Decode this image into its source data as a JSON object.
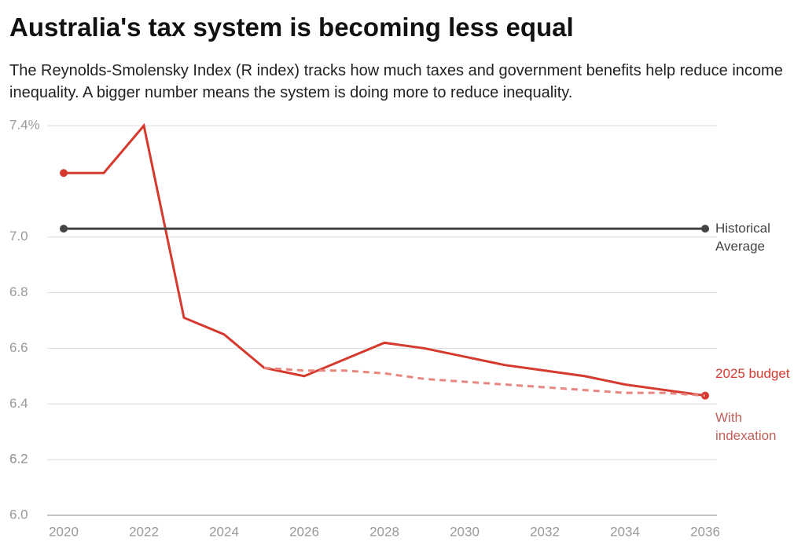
{
  "chart_data": {
    "type": "line",
    "title": "Australia's tax system is becoming less equal",
    "subtitle": "The Reynolds-Smolensky Index (R index) tracks how much taxes and government benefits help reduce income inequality. A bigger number means the system is doing more to reduce inequality.",
    "x": [
      2020,
      2021,
      2022,
      2023,
      2024,
      2025,
      2026,
      2027,
      2028,
      2029,
      2030,
      2031,
      2032,
      2033,
      2034,
      2035,
      2036
    ],
    "series": [
      {
        "name": "2025 budget",
        "color": "#d63a2f",
        "dashed": false,
        "endpoint_markers": true,
        "values": [
          7.23,
          7.23,
          7.4,
          6.71,
          6.65,
          6.53,
          6.5,
          6.56,
          6.62,
          6.6,
          6.57,
          6.54,
          6.52,
          6.5,
          6.47,
          6.45,
          6.43
        ]
      },
      {
        "name": "With indexation",
        "color": "#e8877f",
        "dashed": true,
        "endpoint_markers": false,
        "values": [
          null,
          null,
          null,
          null,
          null,
          6.53,
          6.52,
          6.52,
          6.51,
          6.49,
          6.48,
          6.47,
          6.46,
          6.45,
          6.44,
          6.44,
          6.43
        ]
      },
      {
        "name": "Historical Average",
        "color": "#444444",
        "dashed": false,
        "endpoint_markers": true,
        "values": [
          7.03,
          7.03,
          7.03,
          7.03,
          7.03,
          7.03,
          7.03,
          7.03,
          7.03,
          7.03,
          7.03,
          7.03,
          7.03,
          7.03,
          7.03,
          7.03,
          7.03
        ]
      }
    ],
    "xlim": [
      2020,
      2036
    ],
    "xticks": [
      2020,
      2022,
      2024,
      2026,
      2028,
      2030,
      2032,
      2034,
      2036
    ],
    "ylim": [
      6.0,
      7.4
    ],
    "yticks": [
      {
        "value": 6.0,
        "label": "6.0"
      },
      6.2,
      6.4,
      6.6,
      6.8,
      {
        "value": 7.0,
        "label": "7.0"
      },
      6.2,
      {
        "value": 7.4,
        "label": "7.4%"
      }
    ],
    "grid": true
  }
}
